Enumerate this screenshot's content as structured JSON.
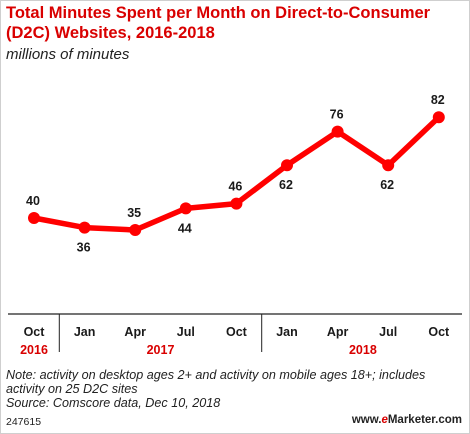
{
  "title": "Total Minutes Spent per Month on Direct-to-Consumer (D2C) Websites, 2016-2018",
  "subtitle": "millions of minutes",
  "chart_data": {
    "type": "line",
    "categories": [
      "Oct",
      "Jan",
      "Apr",
      "Jul",
      "Oct",
      "Jan",
      "Apr",
      "Jul",
      "Oct"
    ],
    "years": [
      {
        "label": "2016",
        "start": 0,
        "end": 0
      },
      {
        "label": "2017",
        "start": 1,
        "end": 4
      },
      {
        "label": "2018",
        "start": 5,
        "end": 8
      }
    ],
    "values": [
      40,
      36,
      35,
      44,
      46,
      62,
      76,
      62,
      82
    ],
    "data_labels": [
      "40",
      "36",
      "35",
      "44",
      "46",
      "62",
      "76",
      "62",
      "82"
    ],
    "label_positions": [
      "above",
      "below",
      "above",
      "below",
      "above",
      "below",
      "above",
      "below",
      "above"
    ],
    "ylim": [
      0,
      95
    ],
    "grid": false,
    "line_color": "#ff0000",
    "year_color": "#d90000"
  },
  "note": "Note: activity on desktop ages 2+ and activity on mobile ages 18+; includes activity on 25 D2C sites",
  "source": "Source: Comscore data, Dec 10, 2018",
  "footer_id": "247615",
  "brand": {
    "prefix": "www.",
    "e": "e",
    "name": "Marketer",
    "suffix": ".com"
  }
}
